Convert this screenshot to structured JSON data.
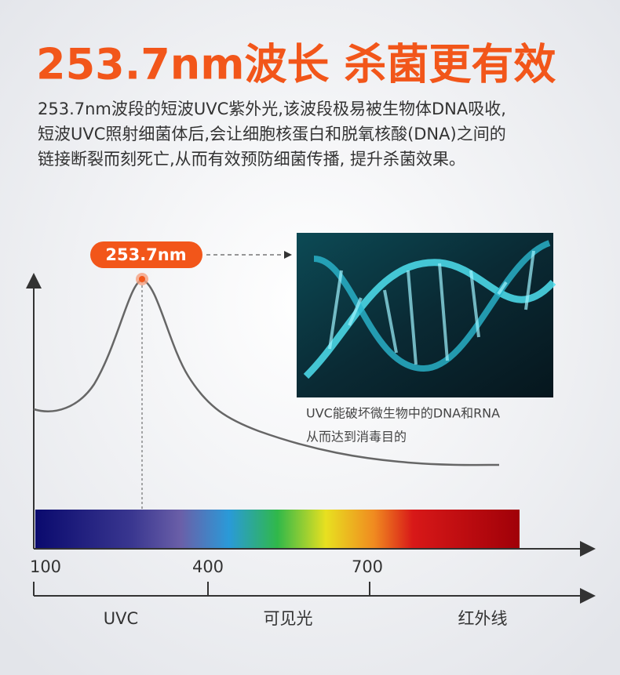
{
  "header": {
    "title": "253.7nm波长 杀菌更有效",
    "lines": [
      "253.7nm波段的短波UVC紫外光,该波段极易被生物体DNA吸收,",
      "短波UVC照射细菌体后,会让细胞核蛋白和脱氧核酸(DNA)之间的",
      "链接断裂而刻死亡,从而有效预防细菌传播, 提升杀菌效果。"
    ]
  },
  "diagram": {
    "peak_label": "253.7nm",
    "caption": [
      "UVC能破坏微生物中的DNA和RNA",
      "从而达到消毒目的"
    ],
    "ticks": [
      "100",
      "400",
      "700"
    ],
    "bands": [
      "UVC",
      "可见光",
      "红外线"
    ]
  }
}
